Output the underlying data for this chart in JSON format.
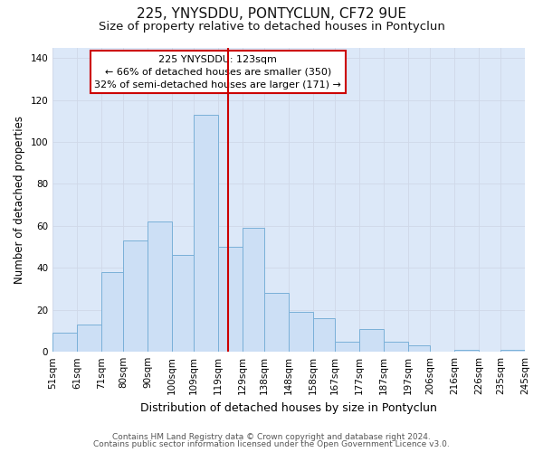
{
  "title": "225, YNYSDDU, PONTYCLUN, CF72 9UE",
  "subtitle": "Size of property relative to detached houses in Pontyclun",
  "xlabel": "Distribution of detached houses by size in Pontyclun",
  "ylabel": "Number of detached properties",
  "bar_labels": [
    "51sqm",
    "61sqm",
    "71sqm",
    "80sqm",
    "90sqm",
    "100sqm",
    "109sqm",
    "119sqm",
    "129sqm",
    "138sqm",
    "148sqm",
    "158sqm",
    "167sqm",
    "177sqm",
    "187sqm",
    "197sqm",
    "206sqm",
    "216sqm",
    "226sqm",
    "235sqm",
    "245sqm"
  ],
  "bar_values": [
    9,
    13,
    38,
    53,
    62,
    46,
    113,
    50,
    59,
    28,
    19,
    16,
    5,
    11,
    5,
    3,
    0,
    1,
    0,
    1
  ],
  "bar_edges": [
    51,
    61,
    71,
    80,
    90,
    100,
    109,
    119,
    129,
    138,
    148,
    158,
    167,
    177,
    187,
    197,
    206,
    216,
    226,
    235,
    245
  ],
  "bar_color": "#ccdff5",
  "bar_edge_color": "#7ab0d8",
  "vline_x": 123,
  "vline_color": "#cc0000",
  "annotation_line1": "225 YNYSDDU: 123sqm",
  "annotation_line2": "← 66% of detached houses are smaller (350)",
  "annotation_line3": "32% of semi-detached houses are larger (171) →",
  "annotation_box_color": "#cc0000",
  "annotation_bg": "#ffffff",
  "ylim": [
    0,
    145
  ],
  "yticks": [
    0,
    20,
    40,
    60,
    80,
    100,
    120,
    140
  ],
  "grid_color": "#d0d8e8",
  "plot_bg_color": "#dce8f8",
  "fig_bg_color": "#ffffff",
  "footer1": "Contains HM Land Registry data © Crown copyright and database right 2024.",
  "footer2": "Contains public sector information licensed under the Open Government Licence v3.0.",
  "title_fontsize": 11,
  "subtitle_fontsize": 9.5,
  "xlabel_fontsize": 9,
  "ylabel_fontsize": 8.5,
  "tick_fontsize": 7.5,
  "footer_fontsize": 6.5,
  "annot_fontsize": 8
}
